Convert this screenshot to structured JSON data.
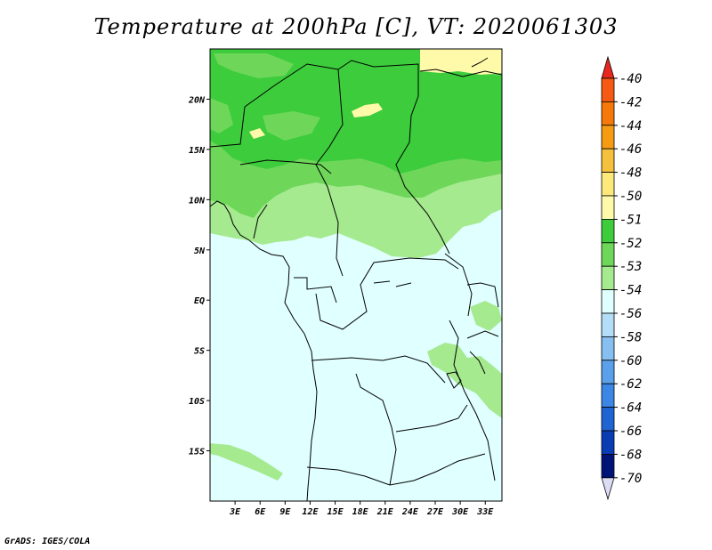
{
  "title": "Temperature at 200hPa [C], VT: 2020061303",
  "footer": "GrADS: IGES/COLA",
  "map": {
    "lon_range": [
      0,
      35
    ],
    "lat_range": [
      -20,
      25
    ],
    "lat_ticks": [
      "20N",
      "15N",
      "10N",
      "5N",
      "EQ",
      "5S",
      "10S",
      "15S"
    ],
    "lon_ticks": [
      "3E",
      "6E",
      "9E",
      "12E",
      "15E",
      "18E",
      "21E",
      "24E",
      "27E",
      "30E",
      "33E"
    ]
  },
  "colorbar": {
    "labels": [
      "-40",
      "-42",
      "-44",
      "-46",
      "-48",
      "-50",
      "-51",
      "-52",
      "-53",
      "-54",
      "-56",
      "-58",
      "-60",
      "-62",
      "-64",
      "-66",
      "-68",
      "-70"
    ],
    "colors": [
      "#e8281e",
      "#f55a12",
      "#f5780a",
      "#f59b14",
      "#f5c03c",
      "#fde87a",
      "#fffaaa",
      "#3ccc3c",
      "#6ed75a",
      "#a5ea8f",
      "#e0ffff",
      "#b4def8",
      "#87c0f0",
      "#5aa0eb",
      "#3c87e6",
      "#1e64d2",
      "#0a3cb4",
      "#001478",
      "#dcdcf5"
    ]
  }
}
